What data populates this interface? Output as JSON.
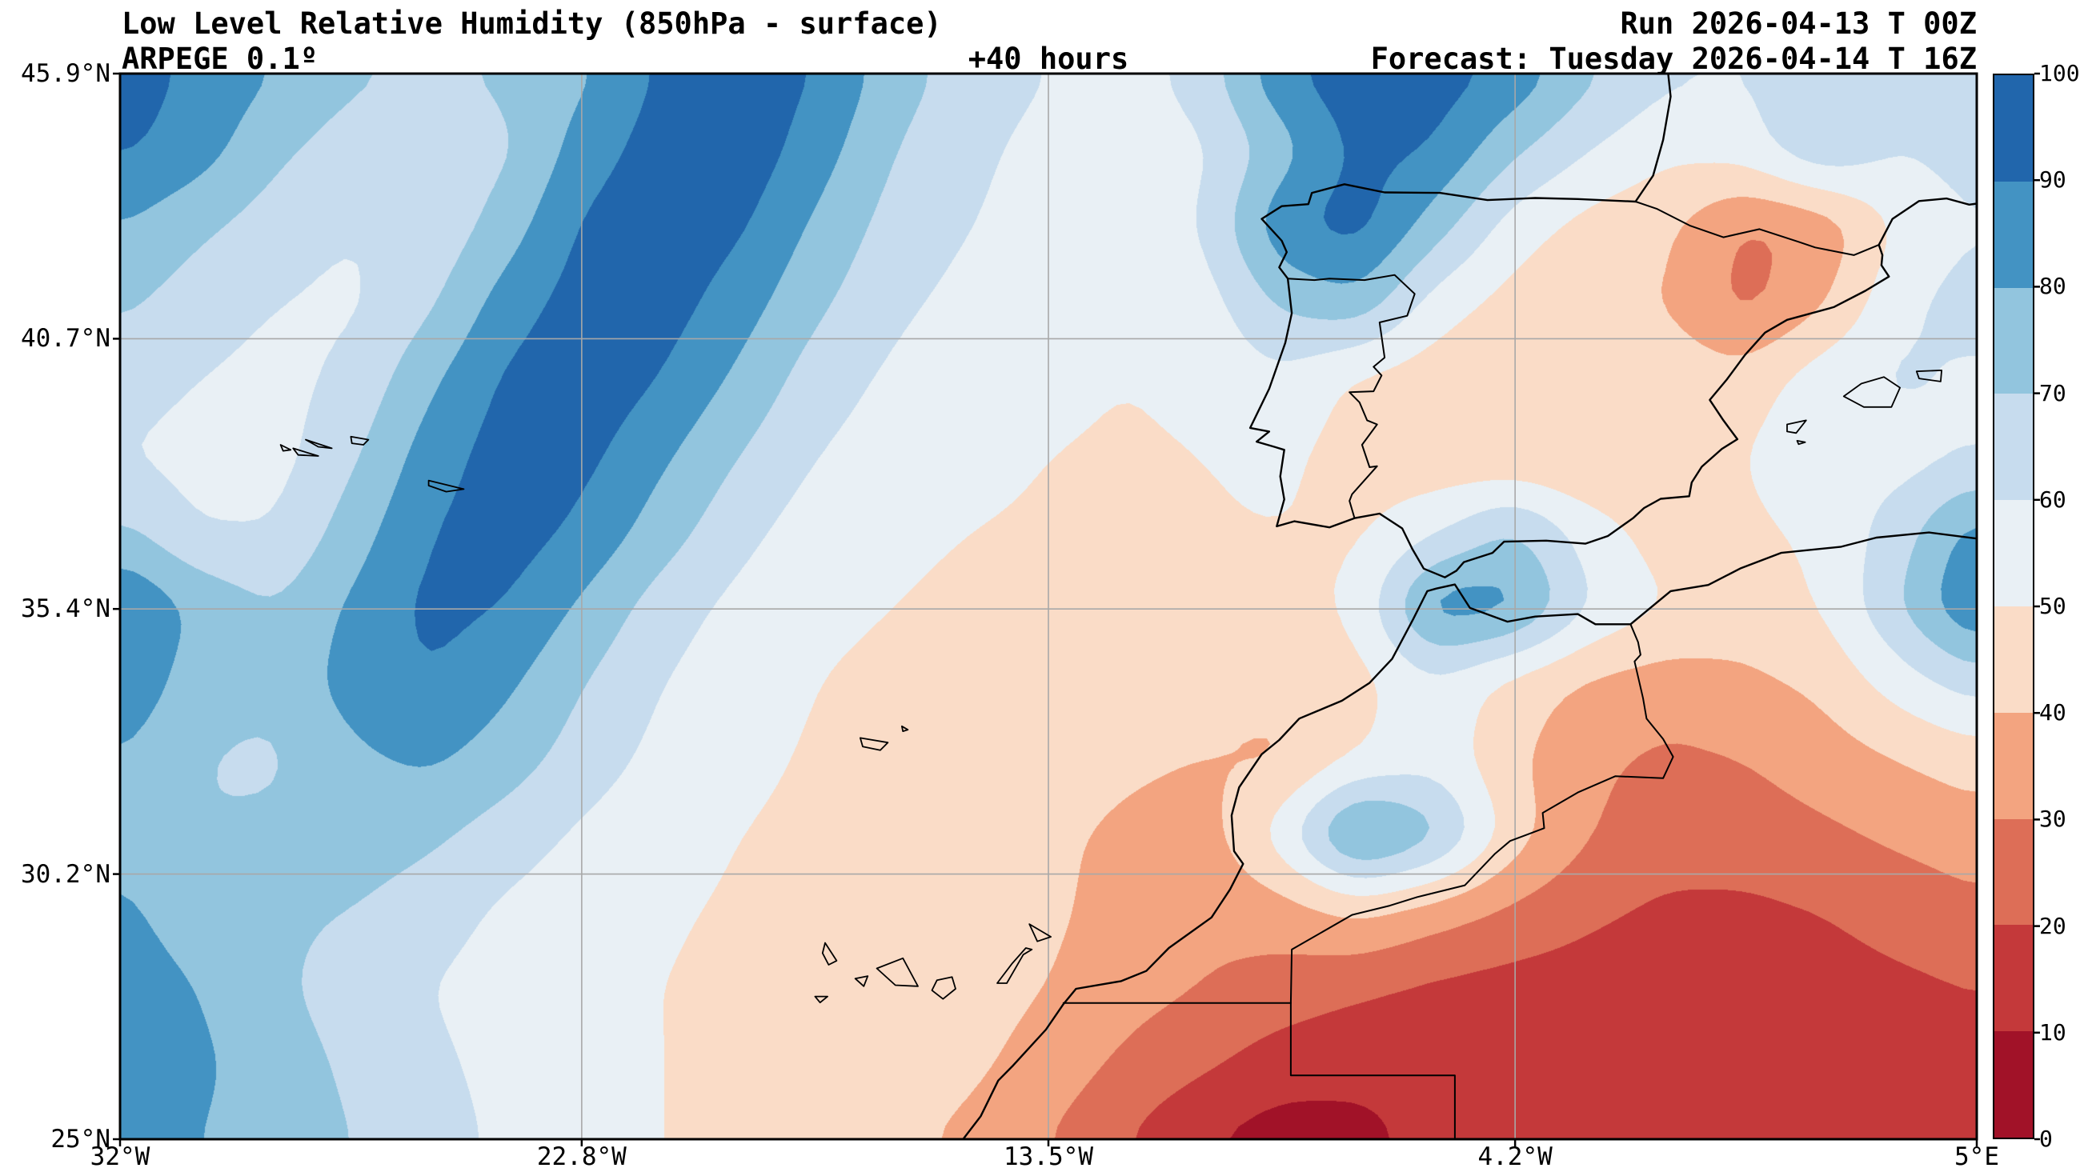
{
  "header": {
    "title": "Low Level Relative Humidity (850hPa - surface)",
    "model": "ARPEGE 0.1º",
    "lead_time": "+40 hours",
    "run": "Run 2026-04-13 T 00Z",
    "forecast": "Forecast: Tuesday 2026-04-14 T 16Z"
  },
  "axes": {
    "x": {
      "ticks": [
        {
          "label": "32°W",
          "lon": -32
        },
        {
          "label": "22.8°W",
          "lon": -22.8
        },
        {
          "label": "13.5°W",
          "lon": -13.5
        },
        {
          "label": "4.2°W",
          "lon": -4.2
        },
        {
          "label": "5°E",
          "lon": 5
        }
      ]
    },
    "y": {
      "ticks": [
        {
          "label": "45.9°N",
          "lat": 45.9
        },
        {
          "label": "40.7°N",
          "lat": 40.7
        },
        {
          "label": "35.4°N",
          "lat": 35.4
        },
        {
          "label": "30.2°N",
          "lat": 30.2
        },
        {
          "label": "25°N",
          "lat": 25
        }
      ]
    }
  },
  "colorbar": {
    "min": 0,
    "max": 100,
    "tick_labels": [
      "100",
      "90",
      "80",
      "70",
      "60",
      "50",
      "40",
      "30",
      "20",
      "10",
      "0"
    ]
  },
  "chart_data": {
    "type": "heatmap",
    "title": "Low Level Relative Humidity (850hPa - surface)",
    "units": "%",
    "lon_range": [
      -32,
      5
    ],
    "lat_range": [
      25,
      45.9
    ],
    "levels": [
      0,
      10,
      20,
      30,
      40,
      50,
      60,
      70,
      80,
      90,
      100
    ],
    "palette": [
      "#a11228",
      "#c4393a",
      "#dd6e57",
      "#f3a480",
      "#fadcc7",
      "#e9f0f5",
      "#c7dcee",
      "#92c5de",
      "#4393c3",
      "#2166ac"
    ],
    "grid": {
      "lons": [
        -32,
        -30.46,
        -28.92,
        -27.38,
        -25.83,
        -24.29,
        -22.75,
        -21.21,
        -19.67,
        -18.13,
        -16.58,
        -15.04,
        -13.5,
        -11.96,
        -10.42,
        -8.88,
        -7.33,
        -5.79,
        -4.25,
        -2.71,
        -1.17,
        0.38,
        1.92,
        3.46,
        5
      ],
      "lats": [
        45.9,
        44.41,
        42.91,
        41.42,
        39.93,
        38.44,
        36.94,
        35.45,
        33.96,
        32.46,
        30.97,
        29.48,
        27.99,
        26.49,
        25
      ],
      "values": [
        [
          95,
          88,
          80,
          72,
          68,
          72,
          78,
          92,
          97,
          90,
          75,
          65,
          60,
          55,
          65,
          88,
          97,
          95,
          88,
          72,
          62,
          60,
          68,
          62,
          70
        ],
        [
          92,
          85,
          72,
          65,
          62,
          68,
          85,
          95,
          97,
          85,
          70,
          62,
          57,
          54,
          58,
          75,
          93,
          90,
          72,
          60,
          52,
          55,
          70,
          60,
          64
        ],
        [
          80,
          72,
          65,
          60,
          62,
          75,
          92,
          97,
          92,
          78,
          66,
          60,
          56,
          53,
          60,
          88,
          95,
          75,
          55,
          46,
          42,
          28,
          32,
          52,
          60
        ],
        [
          72,
          65,
          60,
          58,
          68,
          85,
          95,
          95,
          85,
          72,
          62,
          57,
          54,
          52,
          55,
          72,
          78,
          55,
          46,
          42,
          40,
          26,
          38,
          58,
          64
        ],
        [
          65,
          60,
          57,
          62,
          78,
          92,
          97,
          90,
          78,
          65,
          58,
          54,
          52,
          50,
          52,
          58,
          48,
          44,
          42,
          44,
          46,
          44,
          56,
          62,
          58
        ],
        [
          60,
          56,
          56,
          68,
          85,
          95,
          93,
          82,
          70,
          60,
          55,
          52,
          50,
          49,
          50,
          52,
          46,
          42,
          40,
          38,
          42,
          50,
          58,
          55,
          60
        ],
        [
          72,
          60,
          60,
          75,
          90,
          95,
          88,
          75,
          63,
          55,
          52,
          50,
          49,
          48,
          49,
          50,
          48,
          58,
          72,
          55,
          45,
          48,
          52,
          65,
          85
        ],
        [
          92,
          78,
          70,
          82,
          93,
          90,
          78,
          65,
          57,
          52,
          50,
          48,
          47,
          47,
          48,
          46,
          52,
          88,
          85,
          60,
          50,
          45,
          50,
          70,
          92
        ],
        [
          88,
          75,
          72,
          85,
          90,
          82,
          70,
          60,
          54,
          50,
          48,
          47,
          46,
          45,
          44,
          42,
          46,
          58,
          46,
          38,
          35,
          38,
          42,
          55,
          65
        ],
        [
          80,
          70,
          68,
          78,
          82,
          75,
          65,
          57,
          52,
          49,
          47,
          46,
          45,
          42,
          40,
          38,
          50,
          56,
          42,
          32,
          28,
          30,
          35,
          40,
          45
        ],
        [
          78,
          70,
          72,
          75,
          72,
          65,
          58,
          53,
          50,
          48,
          46,
          45,
          42,
          38,
          35,
          55,
          90,
          75,
          45,
          30,
          25,
          25,
          28,
          32,
          35
        ],
        [
          82,
          75,
          72,
          70,
          65,
          58,
          54,
          51,
          49,
          47,
          46,
          45,
          42,
          36,
          32,
          35,
          42,
          35,
          28,
          22,
          18,
          18,
          20,
          24,
          28
        ],
        [
          85,
          80,
          72,
          65,
          60,
          55,
          52,
          50,
          48,
          47,
          46,
          44,
          40,
          34,
          30,
          26,
          22,
          18,
          16,
          15,
          14,
          15,
          16,
          18,
          20
        ],
        [
          88,
          82,
          75,
          68,
          62,
          57,
          53,
          50,
          48,
          46,
          44,
          42,
          36,
          28,
          22,
          15,
          12,
          12,
          13,
          13,
          14,
          14,
          15,
          16,
          18
        ],
        [
          85,
          80,
          76,
          70,
          64,
          58,
          54,
          50,
          47,
          45,
          42,
          38,
          30,
          20,
          10,
          5,
          8,
          12,
          12,
          13,
          13,
          14,
          15,
          15,
          16
        ]
      ]
    }
  }
}
